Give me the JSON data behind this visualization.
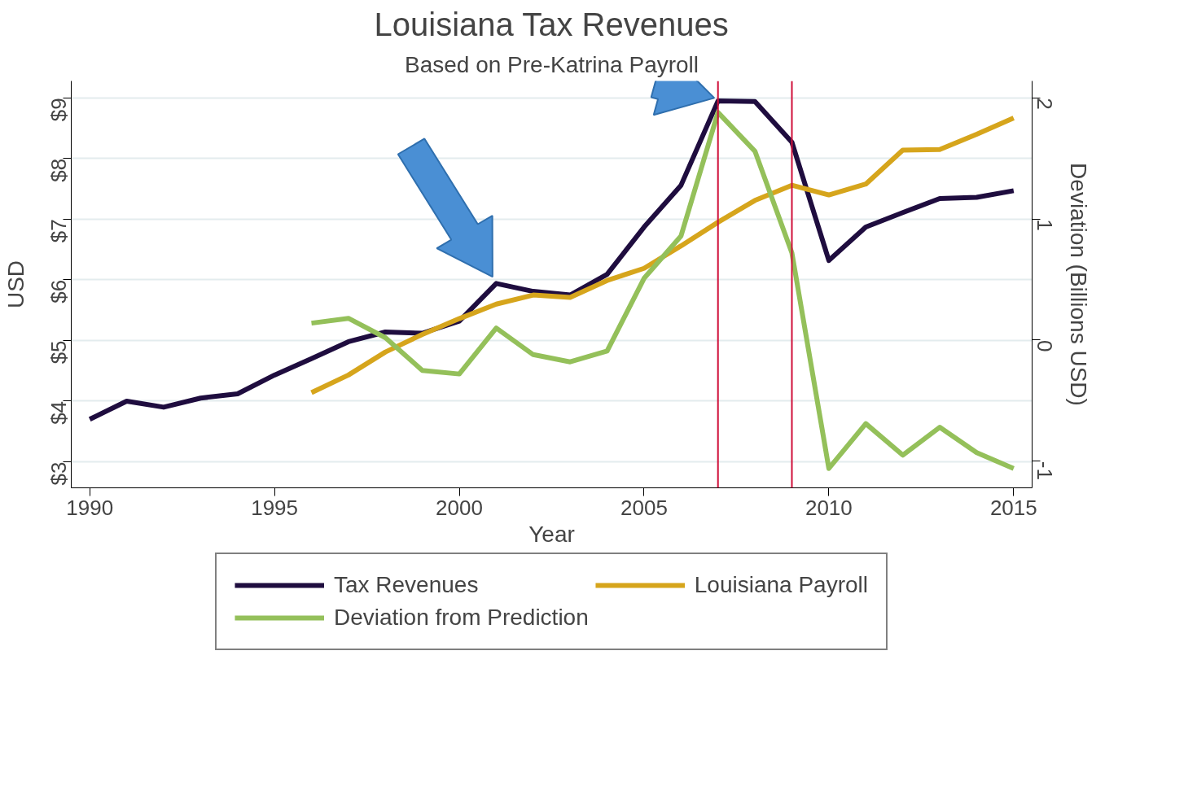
{
  "chart_data": {
    "type": "line",
    "title": "Louisiana Tax Revenues",
    "subtitle": "Based on Pre-Katrina Payroll",
    "xlabel": "Year",
    "ylabel": "USD",
    "y2label": "Deviation (Billions USD)",
    "x": [
      1990,
      1991,
      1992,
      1993,
      1994,
      1995,
      1996,
      1997,
      1998,
      1999,
      2000,
      2001,
      2002,
      2003,
      2004,
      2005,
      2006,
      2007,
      2008,
      2009,
      2010,
      2011,
      2012,
      2013,
      2014,
      2015
    ],
    "series": [
      {
        "name": "Tax Revenues",
        "color": "#1f0d3f",
        "values": [
          3.7,
          4.0,
          3.9,
          4.05,
          4.12,
          4.43,
          4.7,
          4.98,
          5.14,
          5.12,
          5.32,
          5.94,
          5.81,
          5.75,
          6.09,
          6.87,
          7.56,
          8.95,
          8.94,
          8.27,
          6.32,
          6.87,
          7.11,
          7.34,
          7.36,
          7.47
        ]
      },
      {
        "name": "Louisiana Payroll",
        "color": "#d6a51c",
        "values": [
          null,
          null,
          null,
          null,
          null,
          null,
          4.14,
          4.43,
          4.81,
          5.1,
          5.36,
          5.6,
          5.75,
          5.71,
          5.99,
          6.19,
          6.56,
          6.95,
          7.31,
          7.56,
          7.4,
          7.58,
          8.14,
          8.15,
          8.4,
          8.67
        ]
      },
      {
        "name": "Deviation from Prediction",
        "color": "#94c05a",
        "axis": "y2",
        "values": [
          null,
          null,
          null,
          null,
          null,
          null,
          0.14,
          0.18,
          0.02,
          -0.25,
          -0.28,
          0.1,
          -0.12,
          -0.18,
          -0.09,
          0.51,
          0.86,
          1.88,
          1.56,
          0.72,
          -1.06,
          -0.69,
          -0.95,
          -0.72,
          -0.93,
          -1.06
        ]
      }
    ],
    "xlim": [
      1989.5,
      2015.5
    ],
    "xticks": [
      1990,
      1995,
      2000,
      2005,
      2010,
      2015
    ],
    "ylim": [
      2.57,
      9.28
    ],
    "yticks": [
      {
        "value": 3,
        "label": "$3"
      },
      {
        "value": 4,
        "label": "$4"
      },
      {
        "value": 5,
        "label": "$5"
      },
      {
        "value": 6,
        "label": "$6"
      },
      {
        "value": 7,
        "label": "$7"
      },
      {
        "value": 8,
        "label": "$8"
      },
      {
        "value": 9,
        "label": "$9"
      }
    ],
    "y2lim": [
      -1.22,
      2.14
    ],
    "y2ticks": [
      -1,
      0,
      1,
      2
    ],
    "ref_lines": [
      {
        "axis": "x",
        "value": 2007,
        "color": "#d0103a"
      },
      {
        "axis": "x",
        "value": 2009,
        "color": "#d0103a"
      }
    ],
    "grid": "y",
    "legend": "bottom",
    "line_style": "solid",
    "marker": "none"
  }
}
